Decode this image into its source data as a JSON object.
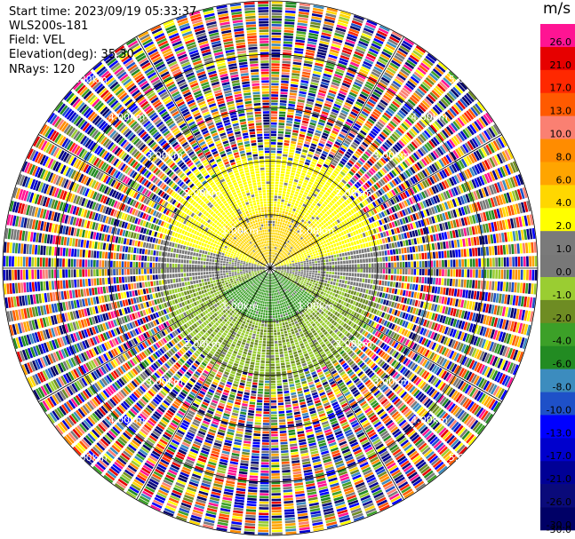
{
  "header": {
    "start_time": "Start time: 2023/09/19 05:33:37",
    "instrument": "WLS200s-181",
    "field": "Field: VEL",
    "elevation": "Elevation(deg): 35.30",
    "nrays": "NRays: 120"
  },
  "chart_data": {
    "type": "heatmap",
    "projection": "polar (PPI)",
    "n_rays": 120,
    "field": "VEL",
    "unit_label": "m/s",
    "range_rings": [
      {
        "value": 1.0,
        "label": "1.00km"
      },
      {
        "value": 2.0,
        "label": "2.00km"
      },
      {
        "value": 3.0,
        "label": "3.00km"
      },
      {
        "value": 4.0,
        "label": "4.00km"
      },
      {
        "value": 5.0,
        "label": "5.00km"
      }
    ],
    "max_range_km": 5.0,
    "spokes_deg": [
      0,
      30,
      60,
      90,
      120,
      150,
      180,
      210,
      240,
      270,
      300,
      330
    ],
    "colorbar": {
      "levels": [
        -30.0,
        -26.0,
        -21.0,
        -17.0,
        -13.0,
        -10.0,
        -8.0,
        -6.0,
        -4.0,
        -2.0,
        -1.0,
        0.0,
        1.0,
        2.0,
        4.0,
        6.0,
        8.0,
        10.0,
        13.0,
        17.0,
        21.0,
        26.0,
        30.0
      ],
      "tick_labels": [
        "-30.0",
        "-26.0",
        "-21.0",
        "-17.0",
        "-13.0",
        "-10.0",
        "-8.0",
        "-6.0",
        "-4.0",
        "-2.0",
        "-1.0",
        "0.0",
        "1.0",
        "2.0",
        "4.0",
        "6.0",
        "8.0",
        "10.0",
        "13.0",
        "17.0",
        "21.0",
        "26.0"
      ],
      "colors": [
        "#000066",
        "#0a0a7a",
        "#000096",
        "#0000cd",
        "#0000ff",
        "#1e50c8",
        "#3c8cbe",
        "#228b22",
        "#3ca028",
        "#6e8c23",
        "#9acd32",
        "#787878",
        "#7a7a7a",
        "#ffff00",
        "#ffd700",
        "#ffa500",
        "#ff8c00",
        "#fa8072",
        "#ff5a00",
        "#ff2800",
        "#e60000",
        "#ff1493"
      ]
    },
    "pattern": {
      "inner_region_km": 2.2,
      "north_sector": "positive 2-4 m/s (yellow) with 4-6 m/s core (orange)",
      "south_sector": "negative -1 to -4 m/s (yellow-green) with -4 to -6 m/s core (green)",
      "east_west_band": "near 0 m/s (gray)",
      "outer_region": "noise, all levels"
    }
  }
}
